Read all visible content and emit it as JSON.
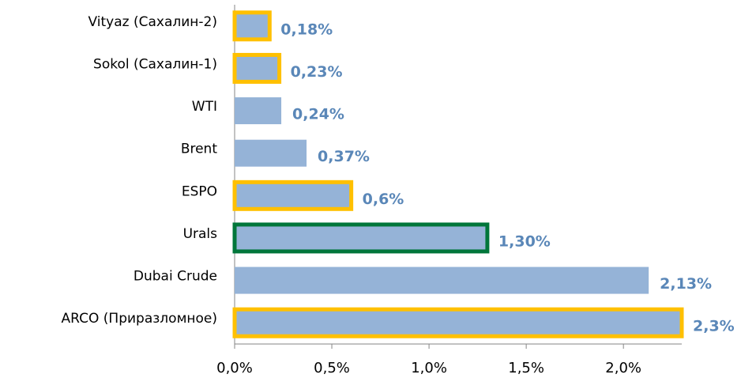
{
  "chart_data": {
    "type": "bar",
    "orientation": "horizontal",
    "categories": [
      "Vityaz (Сахалин-2)",
      "Sokol (Сахалин-1)",
      "WTI",
      "Brent",
      "ESPO",
      "Urals",
      "Dubai Crude",
      "ARCO (Приразломное)"
    ],
    "values": [
      0.18,
      0.23,
      0.24,
      0.37,
      0.6,
      1.3,
      2.13,
      2.3
    ],
    "value_labels": [
      "0,18%",
      "0,23%",
      "0,24%",
      "0,37%",
      "0,6%",
      "1,30%",
      "2,13%",
      "2,3%"
    ],
    "color": "#95b3d7",
    "outline_colors": [
      "#ffc000",
      "#ffc000",
      null,
      null,
      "#ffc000",
      "#00763a",
      null,
      "#ffc000"
    ],
    "xlim": [
      0,
      2.3
    ],
    "xticks": [
      {
        "value": 0,
        "label": "0,0%"
      },
      {
        "value": 0.5,
        "label": "0,5%"
      },
      {
        "value": 1,
        "label": "1,0%"
      },
      {
        "value": 1.5,
        "label": "1,5%"
      },
      {
        "value": 2,
        "label": "2,0%"
      }
    ],
    "grid": false
  }
}
